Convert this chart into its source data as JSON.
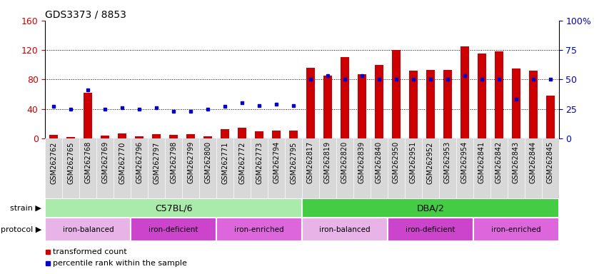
{
  "title": "GDS3373 / 8853",
  "samples": [
    "GSM262762",
    "GSM262765",
    "GSM262768",
    "GSM262769",
    "GSM262770",
    "GSM262796",
    "GSM262797",
    "GSM262798",
    "GSM262799",
    "GSM262800",
    "GSM262771",
    "GSM262772",
    "GSM262773",
    "GSM262794",
    "GSM262795",
    "GSM262817",
    "GSM262819",
    "GSM262820",
    "GSM262839",
    "GSM262840",
    "GSM262950",
    "GSM262951",
    "GSM262952",
    "GSM262953",
    "GSM262954",
    "GSM262841",
    "GSM262842",
    "GSM262843",
    "GSM262844",
    "GSM262845"
  ],
  "bar_values": [
    5,
    2,
    62,
    4,
    7,
    3,
    6,
    5,
    6,
    3,
    13,
    14,
    10,
    11,
    11,
    96,
    85,
    110,
    87,
    100,
    120,
    92,
    93,
    93,
    125,
    115,
    118,
    95,
    92,
    58
  ],
  "dot_values": [
    27,
    25,
    41,
    25,
    26,
    25,
    26,
    23,
    23,
    25,
    27,
    30,
    28,
    29,
    28,
    50,
    53,
    50,
    53,
    50,
    50,
    50,
    50,
    50,
    53,
    50,
    50,
    33,
    50,
    50
  ],
  "bar_color": "#cc0000",
  "dot_color": "#0000cc",
  "ylim_left": [
    0,
    160
  ],
  "ylim_right": [
    0,
    100
  ],
  "yticks_left": [
    0,
    40,
    80,
    120,
    160
  ],
  "yticks_right": [
    0,
    25,
    50,
    75,
    100
  ],
  "ytick_labels_right": [
    "0",
    "25",
    "50",
    "75",
    "100%"
  ],
  "grid_lines": [
    40,
    80,
    120
  ],
  "strain_groups": [
    {
      "label": "C57BL/6",
      "start": 0,
      "end": 15,
      "color": "#aaeaaa"
    },
    {
      "label": "DBA/2",
      "start": 15,
      "end": 30,
      "color": "#44cc44"
    }
  ],
  "protocol_groups": [
    {
      "label": "iron-balanced",
      "start": 0,
      "end": 5,
      "color": "#e8b4e8"
    },
    {
      "label": "iron-deficient",
      "start": 5,
      "end": 10,
      "color": "#cc44cc"
    },
    {
      "label": "iron-enriched",
      "start": 10,
      "end": 15,
      "color": "#dd66dd"
    },
    {
      "label": "iron-balanced",
      "start": 15,
      "end": 20,
      "color": "#e8b4e8"
    },
    {
      "label": "iron-deficient",
      "start": 20,
      "end": 25,
      "color": "#cc44cc"
    },
    {
      "label": "iron-enriched",
      "start": 25,
      "end": 30,
      "color": "#dd66dd"
    }
  ],
  "legend_items": [
    {
      "label": "transformed count",
      "color": "#cc0000"
    },
    {
      "label": "percentile rank within the sample",
      "color": "#0000cc"
    }
  ],
  "background_color": "#ffffff",
  "plot_bg_color": "#ffffff",
  "xtick_area_color": "#d8d8d8",
  "title_fontsize": 10,
  "tick_label_fontsize": 7
}
